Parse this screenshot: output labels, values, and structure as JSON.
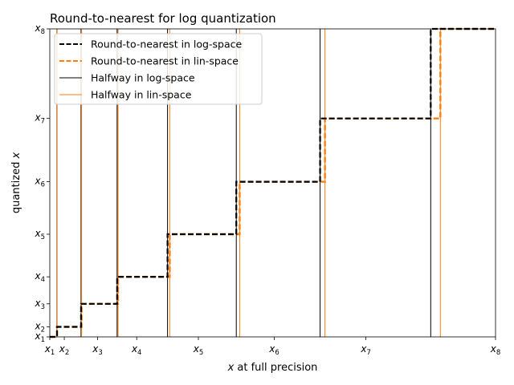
{
  "chart_data": {
    "type": "line",
    "title": "Round-to-nearest for log quantization",
    "xlabel": "x at full precision",
    "ylabel": "quantized x",
    "xlim": [
      1,
      8
    ],
    "ylim": [
      1,
      8
    ],
    "log_scale": true,
    "grid": false,
    "legend_position": "top-left",
    "tick_labels": [
      "x1",
      "x2",
      "x3",
      "x4",
      "x5",
      "x6",
      "x7",
      "x8"
    ],
    "levels": [
      1.0,
      1.07,
      1.25,
      1.5,
      2.0,
      2.85,
      4.37,
      8.0
    ],
    "halfway_log": [
      1.034,
      1.157,
      1.369,
      1.732,
      2.387,
      3.529,
      5.913
    ],
    "halfway_lin": [
      1.035,
      1.16,
      1.375,
      1.75,
      2.425,
      3.61,
      6.185
    ],
    "series": [
      {
        "name": "Round-to-nearest in log-space",
        "style": "dashed",
        "color": "#000000",
        "width": 2
      },
      {
        "name": "Round-to-nearest in lin-space",
        "style": "dashed",
        "color": "#ff7f0e",
        "width": 2
      },
      {
        "name": "Halfway in log-space",
        "style": "solid",
        "color": "#000000",
        "width": 1
      },
      {
        "name": "Halfway in lin-space",
        "style": "solid",
        "color": "#ff7f0e",
        "width": 1
      }
    ]
  }
}
